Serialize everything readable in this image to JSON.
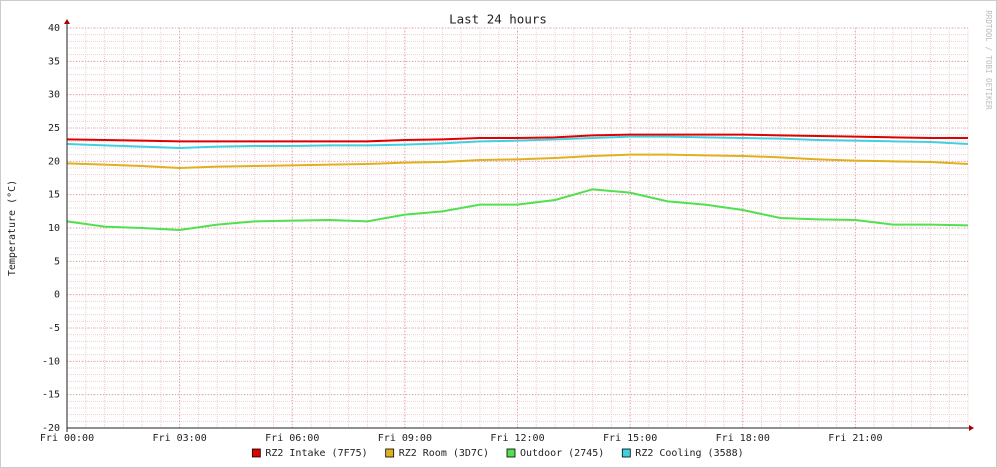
{
  "chart_data": {
    "type": "line",
    "title": "Last 24 hours",
    "y_label": "Temperature (°C)",
    "watermark": "RRDTOOL / TOBI OETIKER",
    "x": [
      0,
      1,
      2,
      3,
      4,
      5,
      6,
      7,
      8,
      9,
      10,
      11,
      12,
      13,
      14,
      15,
      16,
      17,
      18,
      19,
      20,
      21,
      22,
      23,
      24
    ],
    "xlim": [
      0,
      24
    ],
    "xticks": [
      {
        "value": 0,
        "label": "Fri 00:00"
      },
      {
        "value": 3,
        "label": "Fri 03:00"
      },
      {
        "value": 6,
        "label": "Fri 06:00"
      },
      {
        "value": 9,
        "label": "Fri 09:00"
      },
      {
        "value": 12,
        "label": "Fri 12:00"
      },
      {
        "value": 15,
        "label": "Fri 15:00"
      },
      {
        "value": 18,
        "label": "Fri 18:00"
      },
      {
        "value": 21,
        "label": "Fri 21:00"
      }
    ],
    "ylim": [
      -20,
      40
    ],
    "yticks": [
      -20,
      -15,
      -10,
      -5,
      0,
      5,
      10,
      15,
      20,
      25,
      30,
      35,
      40
    ],
    "grid": true,
    "series": [
      {
        "name": "RZ2 Intake (7F75)",
        "color": "#e00000",
        "values": [
          23.3,
          23.2,
          23.1,
          23.0,
          23.0,
          23.0,
          23.0,
          23.0,
          23.0,
          23.2,
          23.3,
          23.5,
          23.5,
          23.6,
          23.9,
          24.0,
          24.0,
          24.0,
          24.0,
          23.9,
          23.8,
          23.7,
          23.6,
          23.5,
          23.5
        ]
      },
      {
        "name": "RZ2 Room (3D7C)",
        "color": "#e0b020",
        "values": [
          19.7,
          19.5,
          19.3,
          19.0,
          19.2,
          19.3,
          19.4,
          19.5,
          19.6,
          19.8,
          19.9,
          20.2,
          20.3,
          20.5,
          20.8,
          21.0,
          21.0,
          20.9,
          20.8,
          20.6,
          20.3,
          20.1,
          20.0,
          19.9,
          19.6
        ]
      },
      {
        "name": "Outdoor (2745)",
        "color": "#50e050",
        "values": [
          11.0,
          10.2,
          10.0,
          9.7,
          10.5,
          11.0,
          11.1,
          11.2,
          11.0,
          12.0,
          12.5,
          13.5,
          13.5,
          14.2,
          15.8,
          15.3,
          14.0,
          13.5,
          12.7,
          11.5,
          11.3,
          11.2,
          10.5,
          10.5,
          10.4
        ]
      },
      {
        "name": "RZ2 Cooling (3588)",
        "color": "#40d0e0",
        "values": [
          22.6,
          22.4,
          22.2,
          22.0,
          22.2,
          22.3,
          22.3,
          22.4,
          22.4,
          22.5,
          22.7,
          23.0,
          23.1,
          23.3,
          23.5,
          23.7,
          23.7,
          23.6,
          23.5,
          23.4,
          23.2,
          23.1,
          23.0,
          22.9,
          22.6
        ]
      }
    ]
  }
}
